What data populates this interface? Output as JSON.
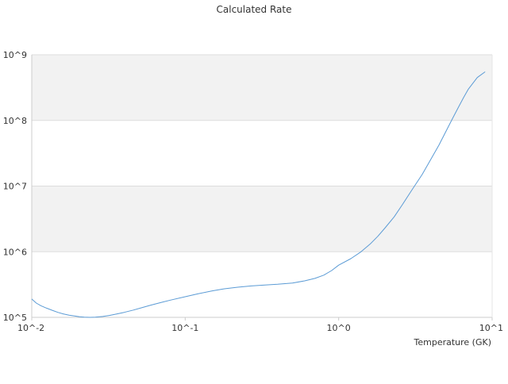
{
  "chart_data": {
    "type": "line",
    "title": "Calculated Rate",
    "xlabel": "Temperature (GK)",
    "ylabel": "",
    "xscale": "log",
    "yscale": "log",
    "xlim": [
      0.01,
      10
    ],
    "ylim": [
      100000,
      1000000000
    ],
    "x_ticks": [
      0.01,
      0.1,
      1,
      10
    ],
    "x_tick_labels": [
      "10^-2",
      "10^-1",
      "10^0",
      "10^1"
    ],
    "y_ticks": [
      100000,
      1000000,
      10000000,
      100000000,
      1000000000
    ],
    "y_tick_labels": [
      "10^5",
      "10^6",
      "10^7",
      "10^8",
      "10^9"
    ],
    "grid": "horizontal bands",
    "legend": "none",
    "colors": {
      "line": "#5b9bd5",
      "band": "#f2f2f2",
      "gridline": "#dddddd"
    },
    "series": [
      {
        "x": [
          0.01,
          0.0107,
          0.0115,
          0.0125,
          0.0136,
          0.0148,
          0.016,
          0.0175,
          0.019,
          0.0205,
          0.022,
          0.024,
          0.026,
          0.029,
          0.032,
          0.036,
          0.04,
          0.046,
          0.052,
          0.06,
          0.07,
          0.08,
          0.1,
          0.12,
          0.15,
          0.18,
          0.22,
          0.27,
          0.33,
          0.4,
          0.5,
          0.6,
          0.7,
          0.8,
          0.9,
          1.0,
          1.2,
          1.4,
          1.6,
          1.8,
          2.0,
          2.3,
          2.6,
          3.0,
          3.5,
          4.0,
          4.5,
          5.0,
          5.5,
          6.0,
          6.5,
          7.0,
          8.0,
          9.0
        ],
        "y": [
          190000,
          165000,
          150000,
          138000,
          128000,
          119000,
          113000,
          108000,
          105000,
          102000,
          100500,
          100000,
          100500,
          103000,
          107000,
          113000,
          119000,
          129000,
          140000,
          154000,
          169000,
          183000,
          206000,
          227000,
          253000,
          272000,
          288000,
          301000,
          311000,
          319000,
          334000,
          360000,
          392000,
          440000,
          516000,
          624000,
          783000,
          1000000,
          1300000,
          1720000,
          2290000,
          3400000,
          5200000,
          8700000,
          15000000,
          26000000,
          42000000,
          68000000,
          105000000,
          155000000,
          220000000,
          300000000,
          450000000,
          550000000
        ]
      }
    ]
  }
}
